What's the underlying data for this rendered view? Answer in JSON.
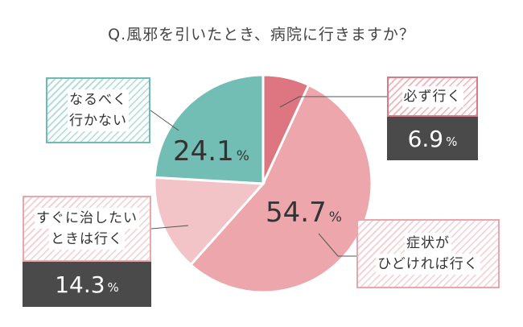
{
  "title": "Q.風邪を引いたとき、病院に行きますか？",
  "colors": {
    "teal": "#72bdb4",
    "rose": "#dd7680",
    "pink": "#eda6ab",
    "light_pink": "#f2c3c7",
    "dark": "#4a4a4a"
  },
  "chart_data": {
    "type": "pie",
    "title": "Q.風邪を引いたとき、病院に行きますか？",
    "categories": [
      "必ず行く",
      "症状がひどければ行く",
      "すぐに治したいときは行く",
      "なるべく行かない"
    ],
    "values": [
      6.9,
      54.7,
      14.3,
      24.1
    ],
    "unit": "%",
    "slices": [
      {
        "label_lines": [
          "必ず行く"
        ],
        "value": "6.9",
        "unit": "%",
        "color": "#dd7680"
      },
      {
        "label_lines": [
          "症状が",
          "ひどければ行く"
        ],
        "value": "54.7",
        "unit": "%",
        "color": "#eda6ab"
      },
      {
        "label_lines": [
          "すぐに治したい",
          "ときは行く"
        ],
        "value": "14.3",
        "unit": "%",
        "color": "#f2c3c7"
      },
      {
        "label_lines": [
          "なるべく",
          "行かない"
        ],
        "value": "24.1",
        "unit": "%",
        "color": "#72bdb4"
      }
    ]
  }
}
